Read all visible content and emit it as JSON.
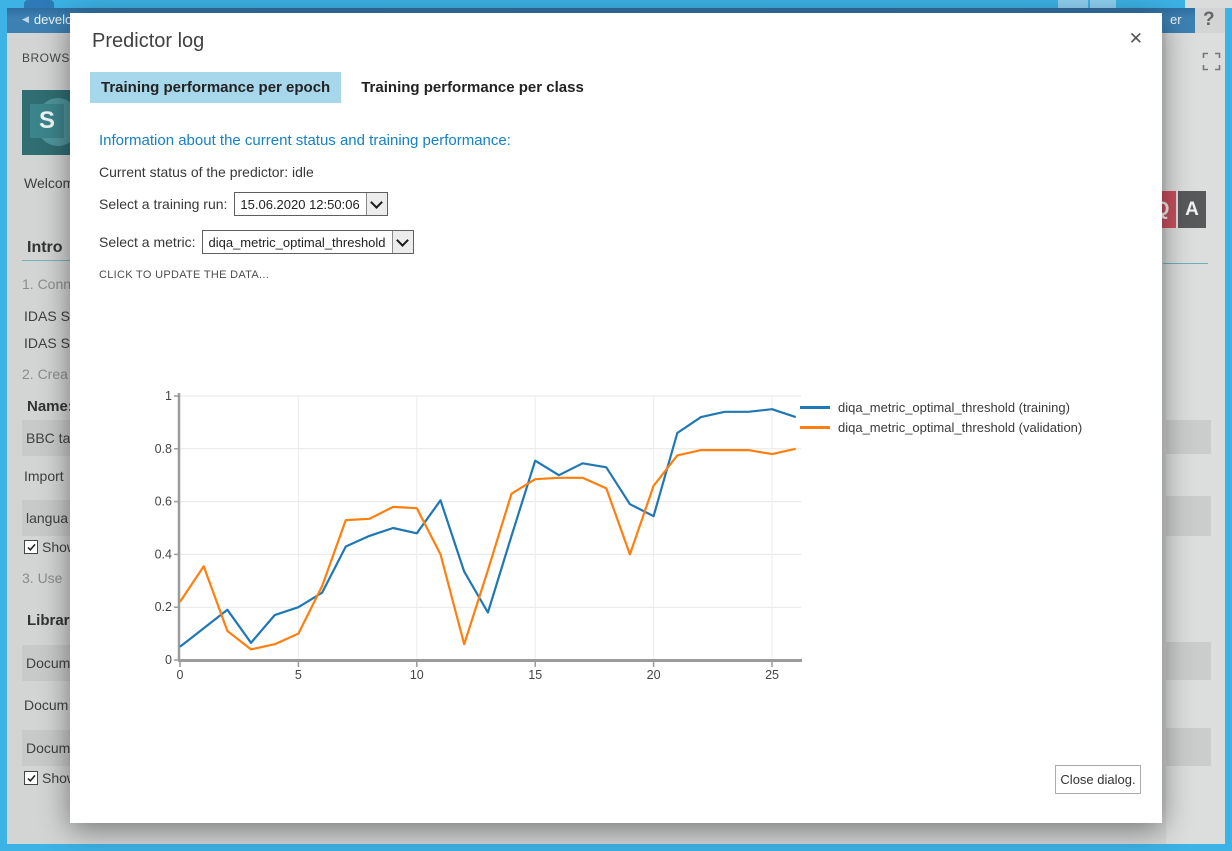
{
  "colors": {
    "border_cyan": "#3cb2e5",
    "suitebar_blue": "#3d81b2",
    "tab_active_bg": "#a7d7ea",
    "info_blue": "#1581c6",
    "series_training": "#1f77b4",
    "series_validation": "#ff7f0e",
    "tile_q_red": "#c9505e",
    "tile_a_grey": "#58595b"
  },
  "top_bar": {
    "back_icon": "◀",
    "site_label": "develop_",
    "right_fragment": "er",
    "help_label": "?"
  },
  "ribbon": {
    "browse_label": "BROWSE"
  },
  "left_panel": {
    "logo_letter": "S",
    "items": [
      {
        "y": 175,
        "type": "plain",
        "text": "Welcom"
      },
      {
        "y": 239,
        "type": "heading",
        "text": "Intro"
      },
      {
        "y": 276,
        "type": "muted",
        "text": "1. Conn"
      },
      {
        "y": 308,
        "type": "plain",
        "text": "IDAS S"
      },
      {
        "y": 335,
        "type": "plain",
        "text": "IDAS S"
      },
      {
        "y": 366,
        "type": "muted",
        "text": "2. Crea"
      },
      {
        "y": 398,
        "type": "heading2",
        "text": "Name:"
      },
      {
        "y": 420,
        "type": "box",
        "text": "BBC ta"
      },
      {
        "y": 468,
        "type": "plain",
        "text": "Import"
      },
      {
        "y": 500,
        "type": "box",
        "text": "langua"
      },
      {
        "y": 539,
        "type": "check",
        "text": "Show"
      },
      {
        "y": 570,
        "type": "muted",
        "text": "3. Use "
      },
      {
        "y": 612,
        "type": "heading2",
        "text": "Library"
      },
      {
        "y": 645,
        "type": "box",
        "text": "Docum"
      },
      {
        "y": 697,
        "type": "plain",
        "text": "Docum"
      },
      {
        "y": 730,
        "type": "box",
        "text": "Docum"
      },
      {
        "y": 770,
        "type": "check",
        "text": "Show"
      }
    ]
  },
  "right_panel": {
    "tiles": [
      {
        "label": "Q"
      },
      {
        "label": "A"
      }
    ],
    "rows": [
      {
        "y": 420,
        "h": 34,
        "boxed": true
      },
      {
        "y": 462,
        "h": 18,
        "boxed": false
      },
      {
        "y": 496,
        "h": 40,
        "boxed": true
      },
      {
        "y": 642,
        "h": 38,
        "boxed": true
      },
      {
        "y": 686,
        "h": 18,
        "boxed": false
      },
      {
        "y": 728,
        "h": 38,
        "boxed": true
      }
    ]
  },
  "dialog": {
    "title": "Predictor log",
    "close_icon": "✕",
    "tabs": [
      {
        "label": "Training performance per epoch",
        "active": true
      },
      {
        "label": "Training performance per class",
        "active": false
      }
    ],
    "info_heading": "Information about the current status and training performance:",
    "status_line": "Current status of the predictor: idle",
    "training_run_label": "Select a training run:",
    "training_run_value": "15.06.2020 12:50:06",
    "metric_label": "Select a metric:",
    "metric_value": "diqa_metric_optimal_threshold",
    "update_link": "CLICK TO UPDATE THE DATA...",
    "close_button": "Close dialog."
  },
  "chart_data": {
    "type": "line",
    "x": [
      0,
      1,
      2,
      3,
      4,
      5,
      6,
      7,
      8,
      9,
      10,
      11,
      12,
      13,
      14,
      15,
      16,
      17,
      18,
      19,
      20,
      21,
      22,
      23,
      24,
      25,
      26
    ],
    "series": [
      {
        "name": "diqa_metric_optimal_threshold (training)",
        "color": "#1f77b4",
        "values": [
          0.05,
          0.12,
          0.19,
          0.065,
          0.17,
          0.2,
          0.255,
          0.43,
          0.47,
          0.5,
          0.48,
          0.605,
          0.335,
          0.18,
          0.47,
          0.755,
          0.7,
          0.745,
          0.73,
          0.59,
          0.545,
          0.86,
          0.92,
          0.94,
          0.94,
          0.95,
          0.92
        ]
      },
      {
        "name": "diqa_metric_optimal_threshold (validation)",
        "color": "#ff7f0e",
        "values": [
          0.22,
          0.355,
          0.11,
          0.04,
          0.06,
          0.1,
          0.28,
          0.53,
          0.535,
          0.58,
          0.575,
          0.4,
          0.06,
          0.34,
          0.63,
          0.685,
          0.69,
          0.69,
          0.65,
          0.4,
          0.66,
          0.775,
          0.795,
          0.795,
          0.795,
          0.78,
          0.8
        ]
      }
    ],
    "title": "",
    "xlabel": "",
    "ylabel": "",
    "xticks": [
      0,
      5,
      10,
      15,
      20,
      25
    ],
    "yticks": [
      0,
      0.2,
      0.4,
      0.6,
      0.8,
      1
    ],
    "xlim": [
      0,
      26.3
    ],
    "ylim": [
      0,
      1
    ],
    "grid": true,
    "legend_position": "right"
  }
}
